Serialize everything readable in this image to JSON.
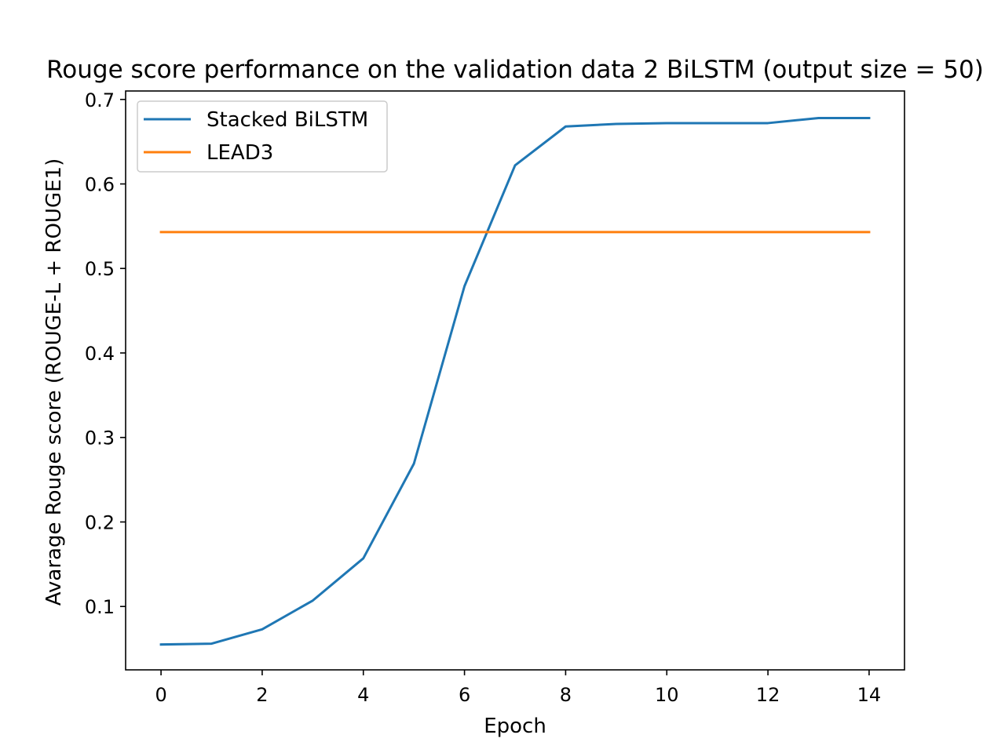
{
  "chart_data": {
    "type": "line",
    "title": "Rouge score performance on the validation data 2 BiLSTM (output size = 50)",
    "xlabel": "Epoch",
    "ylabel": "Avarage Rouge score (ROUGE-L + ROUGE1)",
    "xlim": [
      -0.7,
      14.7
    ],
    "ylim": [
      0.025,
      0.71
    ],
    "xticks": [
      0,
      2,
      4,
      6,
      8,
      10,
      12,
      14
    ],
    "xtick_labels": [
      "0",
      "2",
      "4",
      "6",
      "8",
      "10",
      "12",
      "14"
    ],
    "yticks": [
      0.1,
      0.2,
      0.3,
      0.4,
      0.5,
      0.6,
      0.7
    ],
    "ytick_labels": [
      "0.1",
      "0.2",
      "0.3",
      "0.4",
      "0.5",
      "0.6",
      "0.7"
    ],
    "grid": false,
    "legend_position": "top-left",
    "x": [
      0,
      1,
      2,
      3,
      4,
      5,
      6,
      7,
      8,
      9,
      10,
      11,
      12,
      13,
      14
    ],
    "series": [
      {
        "name": "Stacked BiLSTM",
        "color": "#1f77b4",
        "values": [
          0.055,
          0.056,
          0.073,
          0.107,
          0.157,
          0.269,
          0.479,
          0.622,
          0.668,
          0.671,
          0.672,
          0.672,
          0.672,
          0.678,
          0.678
        ]
      },
      {
        "name": "LEAD3",
        "color": "#ff7f0e",
        "values": [
          0.543,
          0.543,
          0.543,
          0.543,
          0.543,
          0.543,
          0.543,
          0.543,
          0.543,
          0.543,
          0.543,
          0.543,
          0.543,
          0.543,
          0.543
        ]
      }
    ]
  }
}
